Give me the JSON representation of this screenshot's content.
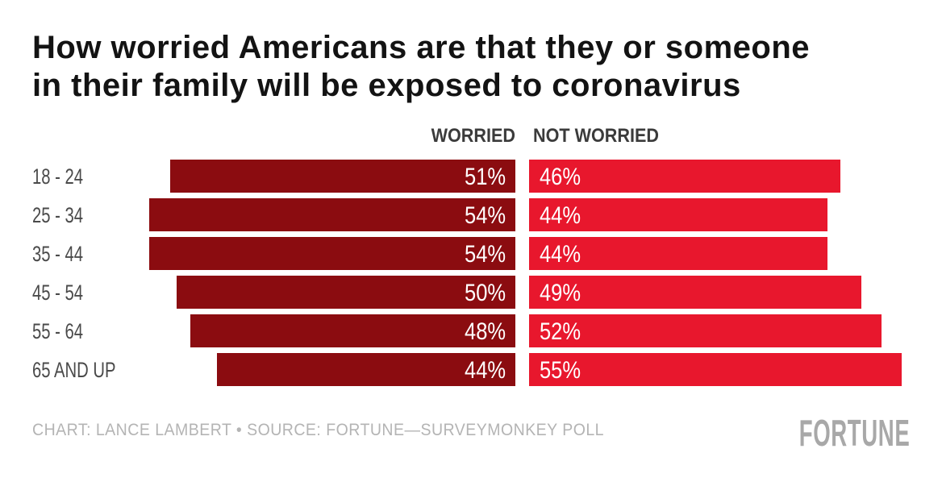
{
  "title": "How worried Americans are that they or someone\nin their family will be exposed to coronavirus",
  "legend": {
    "worried": "WORRIED",
    "not_worried": "NOT WORRIED"
  },
  "chart_data": {
    "type": "bar",
    "subtype": "diverging-horizontal-grouped",
    "title": "How worried Americans are that they or someone in their family will be exposed to coronavirus",
    "categories": [
      "18 - 24",
      "25 - 34",
      "35 - 44",
      "45 - 54",
      "55 - 64",
      "65 AND UP"
    ],
    "series": [
      {
        "name": "WORRIED",
        "values": [
          51,
          54,
          54,
          50,
          48,
          44
        ],
        "color": "#8B0C10",
        "alignment": "right-aligned bars, value labels inside right end"
      },
      {
        "name": "NOT WORRIED",
        "values": [
          46,
          44,
          44,
          49,
          52,
          55
        ],
        "color": "#E8172D",
        "alignment": "left-aligned bars, value labels inside left end"
      }
    ],
    "unit": "%",
    "xlim": [
      0,
      57
    ],
    "grid": false,
    "axes_visible": false,
    "legend_position": "top, split over the two bar columns"
  },
  "footer": {
    "credit": "CHART: LANCE LAMBERT • SOURCE: FORTUNE—SURVEYMONKEY POLL",
    "logo": "FORTUNE"
  },
  "colors": {
    "worried_bar": "#8B0C10",
    "not_worried_bar": "#E8172D",
    "title_text": "#131313",
    "category_text": "#4a4a4a",
    "legend_text": "#3b3b3b",
    "credit_text": "#b4b4b4",
    "logo_text": "#a8a8a8",
    "background": "#ffffff"
  }
}
